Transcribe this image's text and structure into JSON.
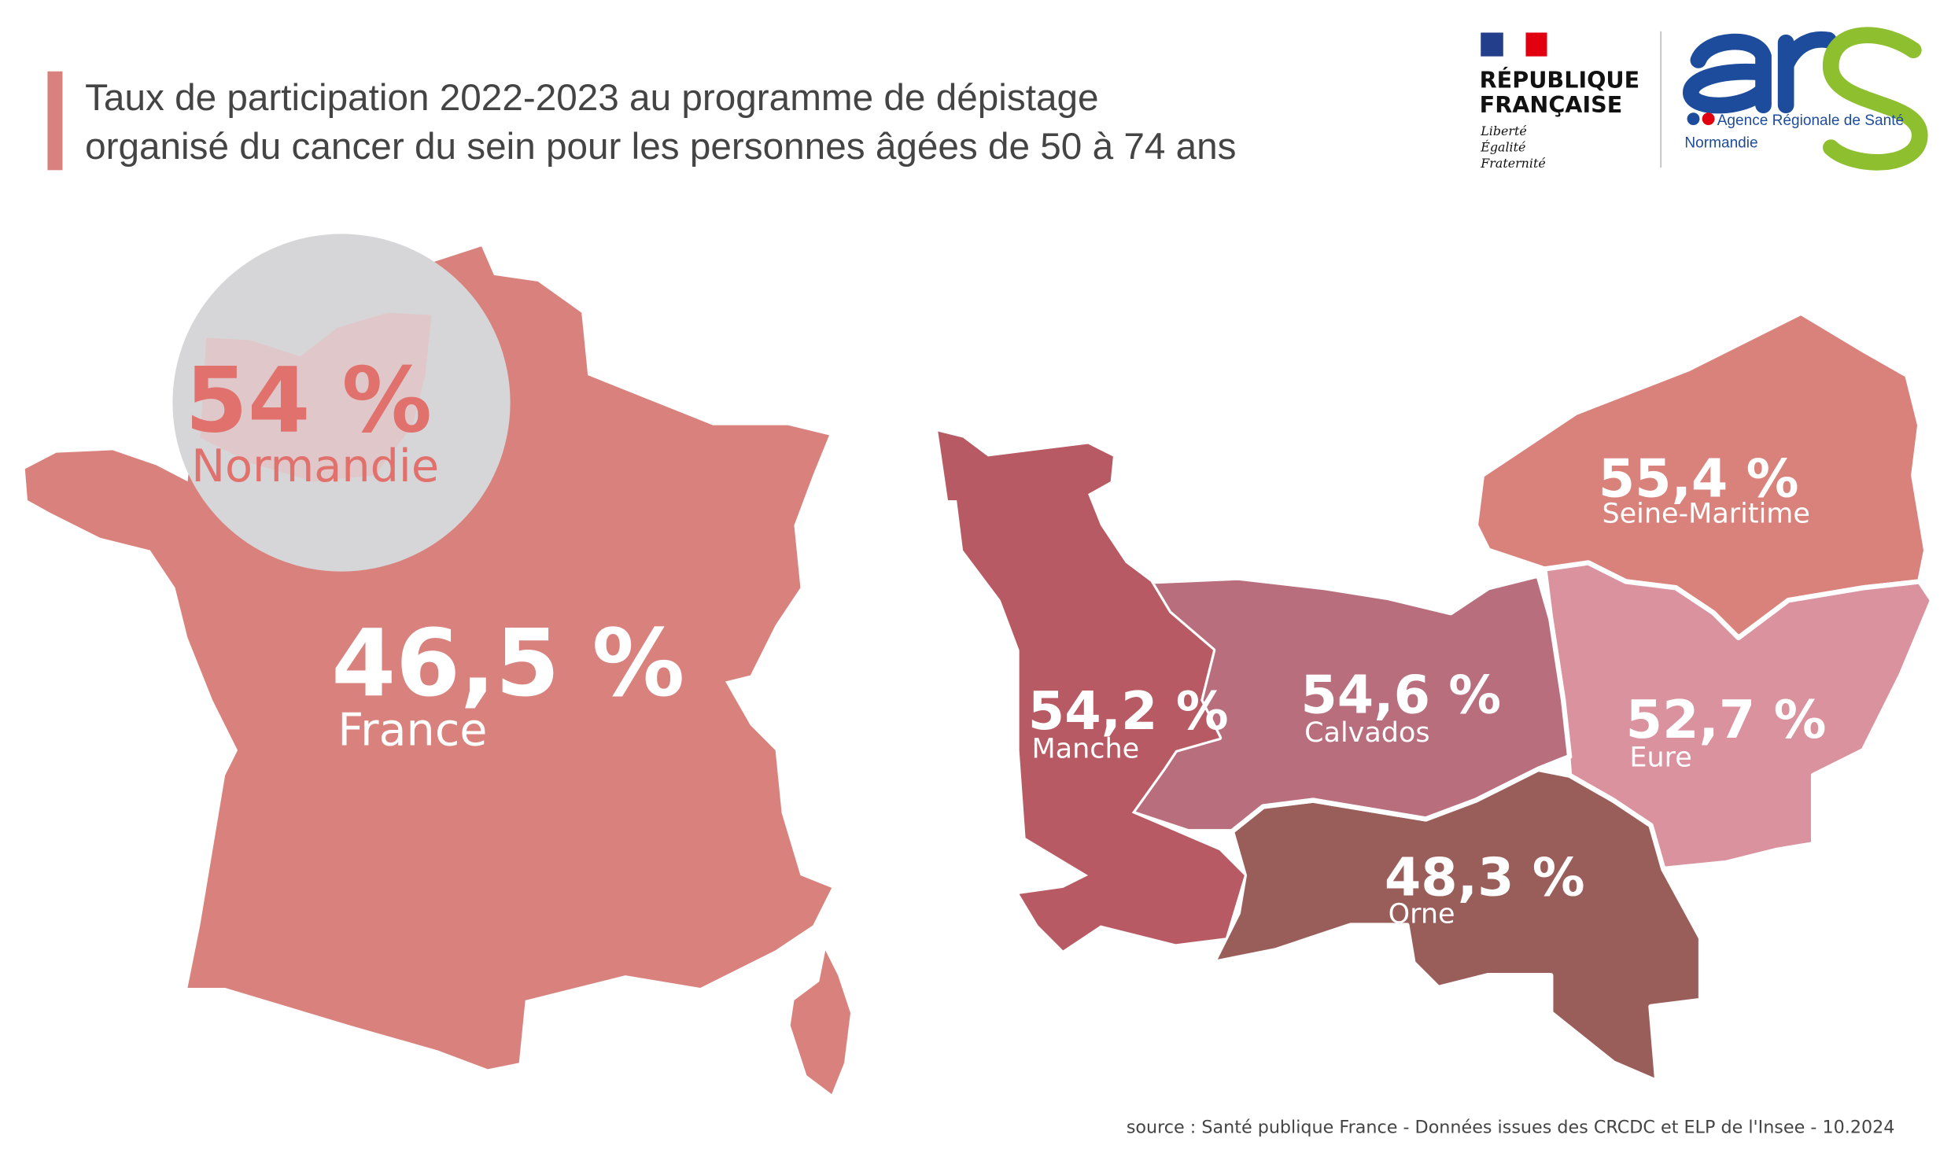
{
  "title": {
    "line1": "Taux de participation 2022-2023 au programme de dépistage",
    "line2": "organisé du cancer du sein pour les personnes âgées de 50 à 74 ans",
    "accent": "#d9827d"
  },
  "logos": {
    "republique": {
      "line1": "RÉPUBLIQUE",
      "line2": "FRANÇAISE",
      "motto1": "Liberté",
      "motto2": "Égalité",
      "motto3": "Fraternité"
    },
    "ars": {
      "mark": "ars",
      "name": "Agence Régionale de Santé",
      "region": "Normandie",
      "blue": "#1d4c9c",
      "green": "#8dbf2e"
    }
  },
  "france": {
    "value": "46,5 %",
    "label": "France",
    "color": "#d9827d"
  },
  "normandie_bubble": {
    "value": "54 %",
    "label": "Normandie"
  },
  "departments": [
    {
      "name": "Manche",
      "value": "54,2 %",
      "color": "#b85a63"
    },
    {
      "name": "Calvados",
      "value": "54,6 %",
      "color": "#b86e7d"
    },
    {
      "name": "Seine-Maritime",
      "value": "55,4 %",
      "color": "#d9827c"
    },
    {
      "name": "Eure",
      "value": "52,7 %",
      "color": "#d9929e"
    },
    {
      "name": "Orne",
      "value": "48,3 %",
      "color": "#995d5a"
    }
  ],
  "source": "source : Santé publique France - Données issues des CRCDC et ELP de l'Insee - 10.2024"
}
